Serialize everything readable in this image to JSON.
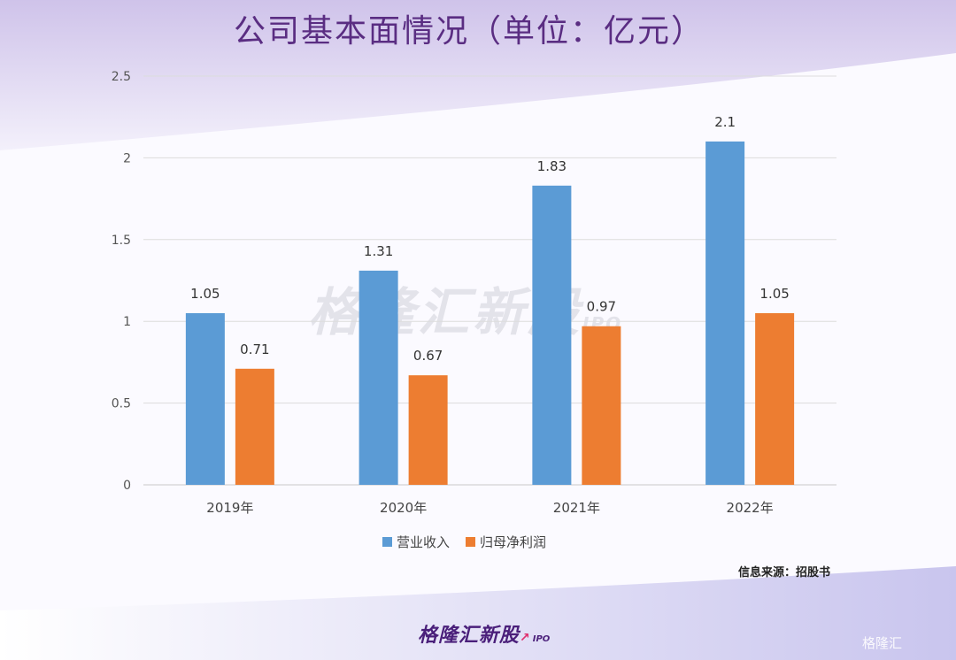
{
  "title": "公司基本面情况（单位：亿元）",
  "source": "信息来源：招股书",
  "brand": {
    "name": "格隆汇新股",
    "sub": "IPO"
  },
  "watermark": {
    "name": "格隆汇新股",
    "sub": "IPO"
  },
  "corner_logo": "格隆汇",
  "colors": {
    "revenue": "#5b9bd5",
    "profit": "#ed7d31",
    "title": "#5a2d82"
  },
  "chart_data": {
    "type": "bar",
    "title": "公司基本面情况（单位：亿元）",
    "categories": [
      "2019年",
      "2020年",
      "2021年",
      "2022年"
    ],
    "series": [
      {
        "name": "营业收入",
        "values": [
          1.05,
          1.31,
          1.83,
          2.1
        ],
        "labels": [
          "1.05",
          "1.31",
          "1.83",
          "2.1"
        ]
      },
      {
        "name": "归母净利润",
        "values": [
          0.71,
          0.67,
          0.97,
          1.05
        ],
        "labels": [
          "0.71",
          "0.67",
          "0.97",
          "1.05"
        ]
      }
    ],
    "ylim": [
      0,
      2.5
    ],
    "yticks": [
      0,
      0.5,
      1,
      1.5,
      2,
      2.5
    ],
    "ytick_labels": [
      "0",
      "0.5",
      "1",
      "1.5",
      "2",
      "2.5"
    ],
    "grid": true,
    "legend": "bottom"
  }
}
